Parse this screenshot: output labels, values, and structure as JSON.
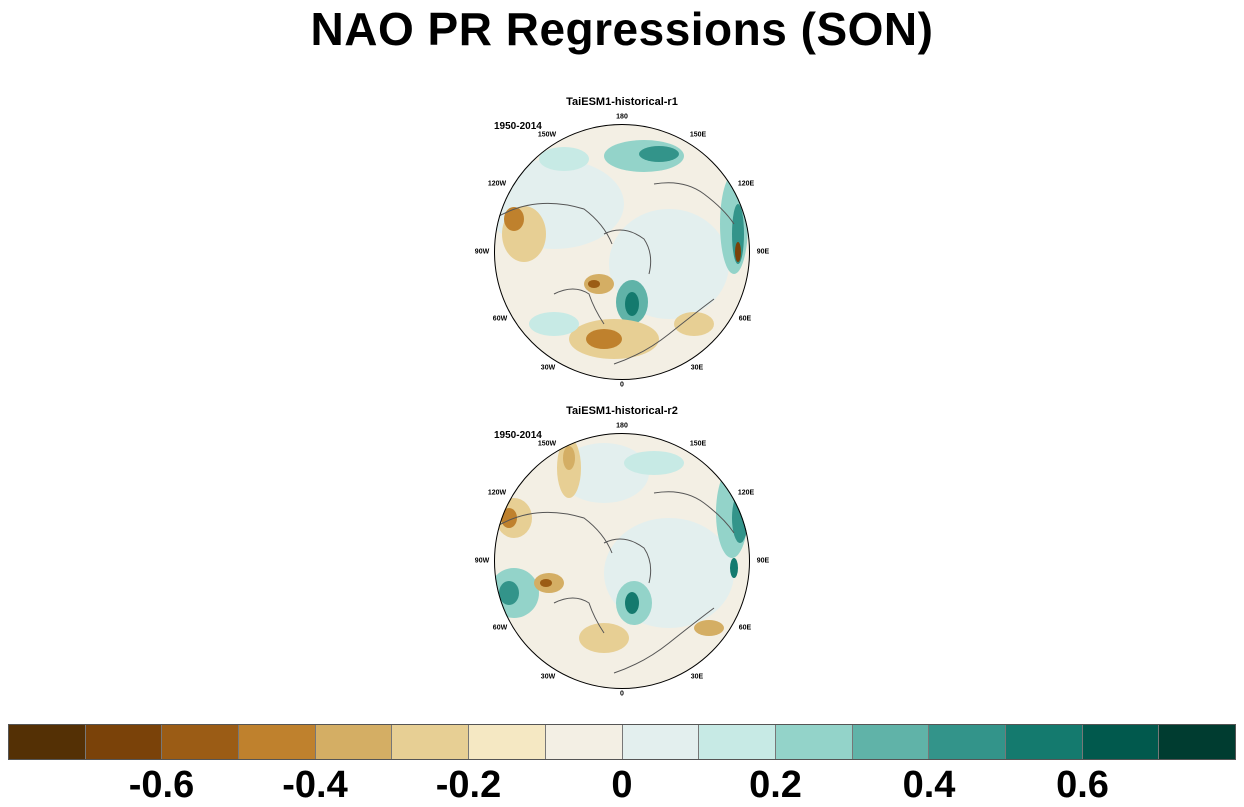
{
  "title": "NAO PR Regressions (SON)",
  "panels": [
    {
      "title": "TaiESM1-historical-r1",
      "period": "1950-2014",
      "lon_labels": {
        "top": "180",
        "ne": "150E",
        "ene": "120E",
        "e": "90E",
        "ese": "60E",
        "se": "30E",
        "bottom": "0",
        "sw": "30W",
        "wsw": "60W",
        "w": "90W",
        "wnw": "120W",
        "nw": "150W"
      }
    },
    {
      "title": "TaiESM1-historical-r2",
      "period": "1950-2014",
      "lon_labels": {
        "top": "180",
        "ne": "150E",
        "ene": "120E",
        "e": "90E",
        "ese": "60E",
        "se": "30E",
        "bottom": "0",
        "sw": "30W",
        "wsw": "60W",
        "w": "90W",
        "wnw": "120W",
        "nw": "150W"
      }
    }
  ],
  "colorbar": {
    "colors": [
      "#543005",
      "#7a4209",
      "#9b5c15",
      "#bf812d",
      "#d4ae64",
      "#e7cf94",
      "#f5e8c3",
      "#f3efe4",
      "#e3efee",
      "#c7eae5",
      "#93d3c9",
      "#60b3a8",
      "#33948a",
      "#147a6e",
      "#01594d",
      "#003c30"
    ],
    "labels": [
      "-0.6",
      "-0.4",
      "-0.2",
      "0",
      "0.2",
      "0.4",
      "0.6"
    ]
  }
}
